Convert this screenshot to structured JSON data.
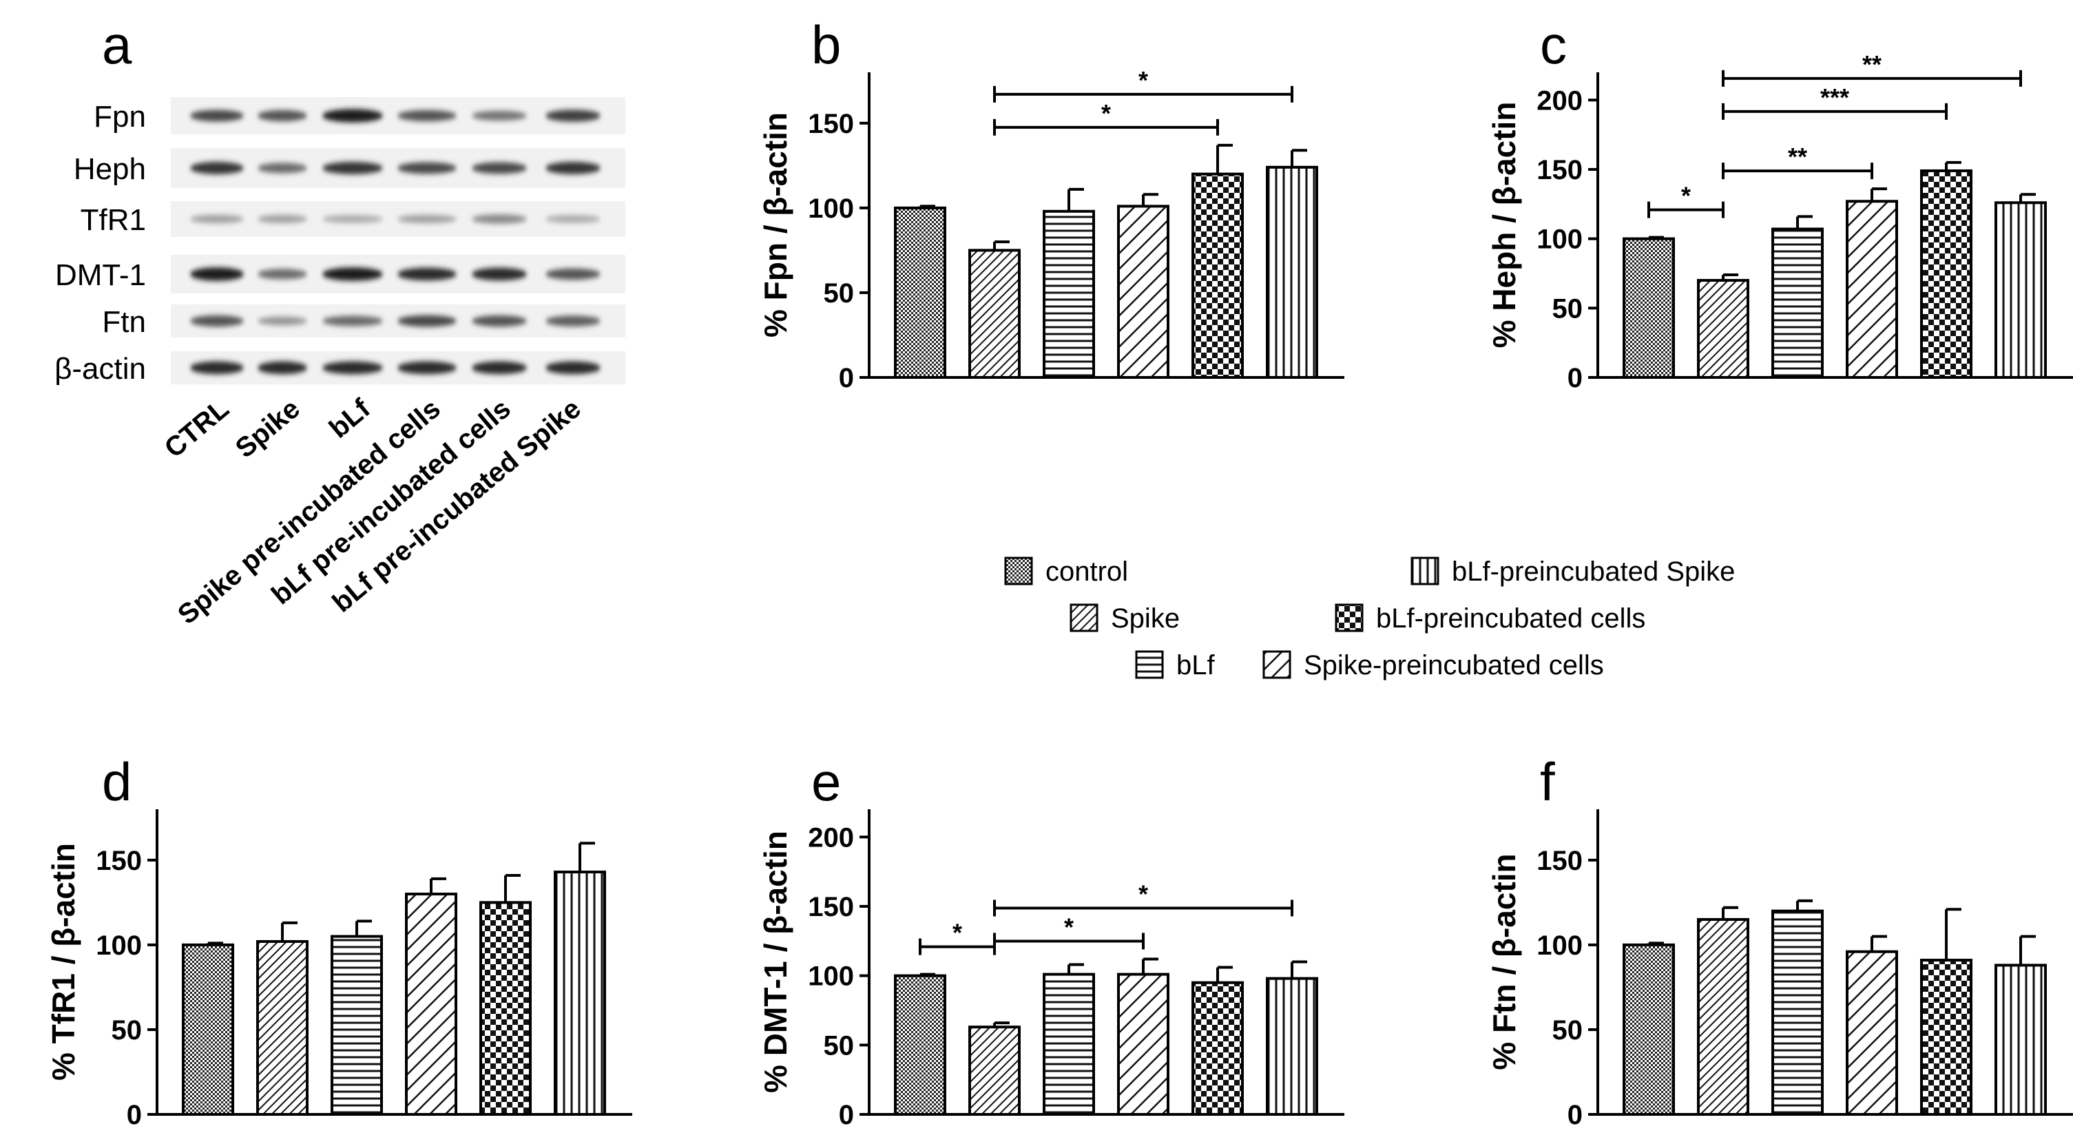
{
  "panel_letters": [
    "a",
    "b",
    "c",
    "d",
    "e",
    "f"
  ],
  "blot": {
    "proteins": [
      "Fpn",
      "Heph",
      "TfR1",
      "DMT-1",
      "Ftn",
      "β-actin"
    ],
    "lanes": [
      "CTRL",
      "Spike",
      "bLf",
      "Spike pre-incubated cells",
      "bLf pre-incubated cells",
      "bLf pre-incubated Spike"
    ],
    "band_intensity": [
      [
        0.75,
        0.7,
        0.95,
        0.7,
        0.55,
        0.8
      ],
      [
        0.85,
        0.6,
        0.85,
        0.75,
        0.75,
        0.85
      ],
      [
        0.35,
        0.35,
        0.3,
        0.35,
        0.45,
        0.3
      ],
      [
        0.95,
        0.6,
        0.95,
        0.9,
        0.9,
        0.7
      ],
      [
        0.7,
        0.4,
        0.6,
        0.75,
        0.7,
        0.65
      ],
      [
        0.9,
        0.9,
        0.9,
        0.9,
        0.9,
        0.9
      ]
    ]
  },
  "legend": {
    "items": [
      {
        "label": "control",
        "pattern": "check"
      },
      {
        "label": "Spike",
        "pattern": "diagdense"
      },
      {
        "label": "bLf",
        "pattern": "horiz"
      },
      {
        "label": "bLf-preincubated Spike",
        "pattern": "vert"
      },
      {
        "label": "bLf-preincubated cells",
        "pattern": "checker"
      },
      {
        "label": "Spike-preincubated cells",
        "pattern": "diagwide"
      }
    ]
  },
  "chart_data": [
    {
      "panel": "b",
      "type": "bar",
      "ylabel": "% Fpn / β-actin",
      "ylim": [
        0,
        180
      ],
      "yticks": [
        0,
        50,
        100,
        150
      ],
      "categories": [
        "control",
        "Spike",
        "bLf",
        "Spike-preincubated cells",
        "bLf-preincubated cells",
        "bLf-preincubated Spike"
      ],
      "values": [
        100,
        75,
        98,
        101,
        120,
        124
      ],
      "errors": [
        1,
        5,
        13,
        7,
        17,
        10
      ],
      "significance": [
        {
          "from": 1,
          "to": 4,
          "label": "*"
        },
        {
          "from": 1,
          "to": 5,
          "label": "*"
        }
      ]
    },
    {
      "panel": "c",
      "type": "bar",
      "ylabel": "% Heph / β-actin",
      "ylim": [
        0,
        220
      ],
      "yticks": [
        0,
        50,
        100,
        150,
        200
      ],
      "categories": [
        "control",
        "Spike",
        "bLf",
        "Spike-preincubated cells",
        "bLf-preincubated cells",
        "bLf-preincubated Spike"
      ],
      "values": [
        100,
        70,
        107,
        127,
        149,
        126
      ],
      "errors": [
        1,
        4,
        9,
        9,
        6,
        6
      ],
      "significance": [
        {
          "from": 0,
          "to": 1,
          "label": "*"
        },
        {
          "from": 1,
          "to": 3,
          "label": "**"
        },
        {
          "from": 1,
          "to": 4,
          "label": "***"
        },
        {
          "from": 1,
          "to": 5,
          "label": "**"
        }
      ]
    },
    {
      "panel": "d",
      "type": "bar",
      "ylabel": "% TfR1 / β-actin",
      "ylim": [
        0,
        180
      ],
      "yticks": [
        0,
        50,
        100,
        150
      ],
      "categories": [
        "control",
        "Spike",
        "bLf",
        "Spike-preincubated cells",
        "bLf-preincubated cells",
        "bLf-preincubated Spike"
      ],
      "values": [
        100,
        102,
        105,
        130,
        125,
        143
      ],
      "errors": [
        1,
        11,
        9,
        9,
        16,
        17
      ],
      "significance": []
    },
    {
      "panel": "e",
      "type": "bar",
      "ylabel": "% DMT-1 / β-actin",
      "ylim": [
        0,
        220
      ],
      "yticks": [
        0,
        50,
        100,
        150,
        200
      ],
      "categories": [
        "control",
        "Spike",
        "bLf",
        "Spike-preincubated cells",
        "bLf-preincubated cells",
        "bLf-preincubated Spike"
      ],
      "values": [
        100,
        63,
        101,
        101,
        95,
        98
      ],
      "errors": [
        1,
        3,
        7,
        11,
        11,
        12
      ],
      "significance": [
        {
          "from": 0,
          "to": 1,
          "label": "*"
        },
        {
          "from": 1,
          "to": 3,
          "label": "*"
        },
        {
          "from": 1,
          "to": 5,
          "label": "*"
        }
      ]
    },
    {
      "panel": "f",
      "type": "bar",
      "ylabel": "% Ftn / β-actin",
      "ylim": [
        0,
        180
      ],
      "yticks": [
        0,
        50,
        100,
        150
      ],
      "categories": [
        "control",
        "Spike",
        "bLf",
        "Spike-preincubated cells",
        "bLf-preincubated cells",
        "bLf-preincubated Spike"
      ],
      "values": [
        100,
        115,
        120,
        96,
        91,
        88
      ],
      "errors": [
        1,
        7,
        6,
        9,
        30,
        17
      ],
      "significance": []
    }
  ]
}
